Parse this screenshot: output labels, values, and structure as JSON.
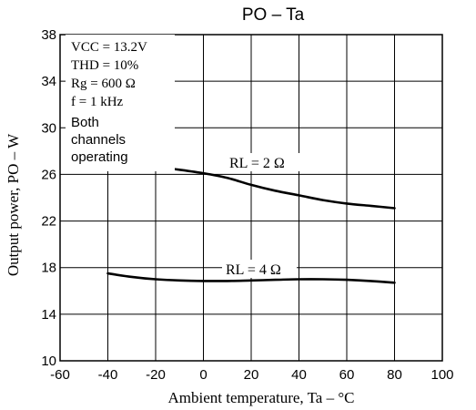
{
  "chart_data": {
    "type": "line",
    "title": "PO – Ta",
    "xlabel": "Ambient temperature, Ta – °C",
    "ylabel": "Output power, PO – W",
    "xlim": [
      -60,
      100
    ],
    "ylim": [
      10,
      38
    ],
    "xticks": [
      -60,
      -40,
      -20,
      0,
      20,
      40,
      60,
      80,
      100
    ],
    "yticks": [
      10,
      14,
      18,
      22,
      26,
      30,
      34,
      38
    ],
    "grid": true,
    "conditions": [
      "VCC = 13.2V",
      "THD = 10%",
      "Rg = 600 Ω",
      "f = 1 kHz",
      "Both",
      "channels",
      "operating"
    ],
    "series": [
      {
        "name": "RL = 2 Ω",
        "x": [
          -15,
          -10,
          0,
          10,
          20,
          30,
          40,
          50,
          60,
          70,
          80
        ],
        "y": [
          26.5,
          26.4,
          26.1,
          25.7,
          25.1,
          24.6,
          24.2,
          23.8,
          23.5,
          23.3,
          23.1
        ]
      },
      {
        "name": "RL = 4 Ω",
        "x": [
          -40,
          -30,
          -20,
          -10,
          0,
          10,
          20,
          30,
          40,
          50,
          60,
          70,
          80
        ],
        "y": [
          17.5,
          17.2,
          17.0,
          16.9,
          16.85,
          16.85,
          16.9,
          16.95,
          17.0,
          17.0,
          16.95,
          16.85,
          16.7
        ]
      }
    ]
  }
}
